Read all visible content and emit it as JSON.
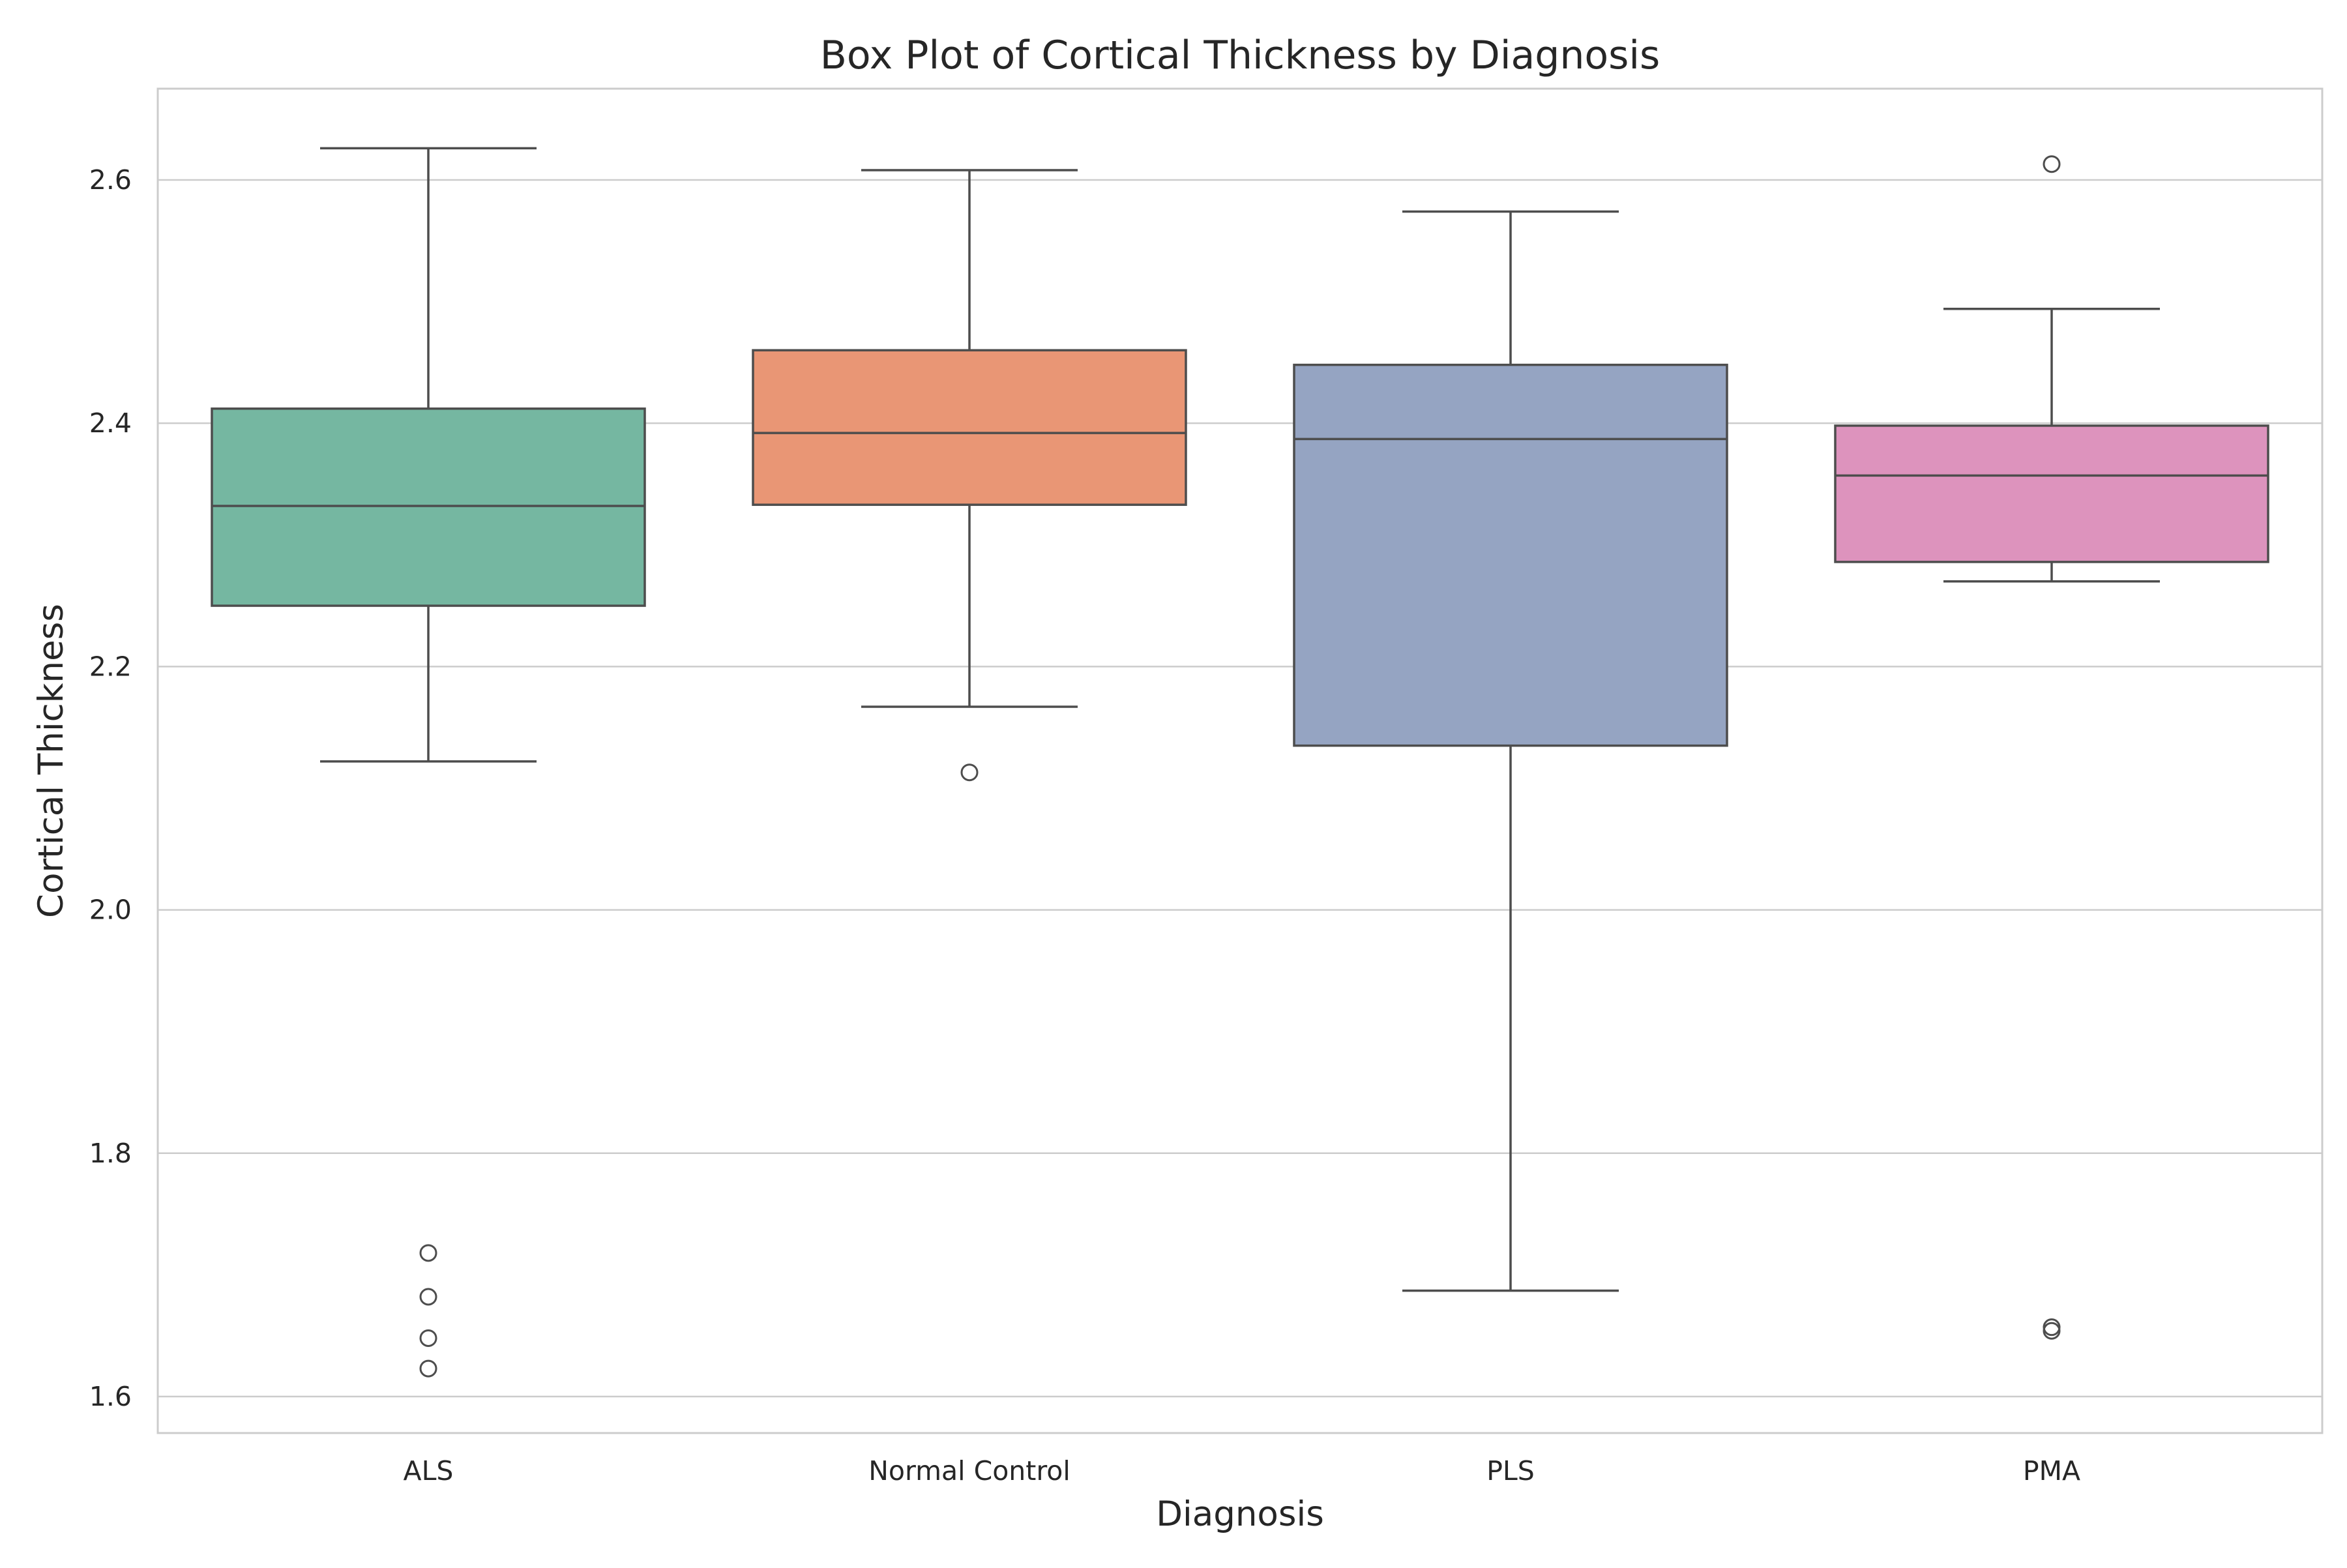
{
  "chart_data": {
    "type": "box",
    "title": "Box Plot of Cortical Thickness by Diagnosis",
    "xlabel": "Diagnosis",
    "ylabel": "Cortical Thickness",
    "ylim": [
      1.57,
      2.675
    ],
    "yticks": [
      1.6,
      1.8,
      2.0,
      2.2,
      2.4,
      2.6
    ],
    "ytick_labels": [
      "1.6",
      "1.8",
      "2.0",
      "2.2",
      "2.4",
      "2.6"
    ],
    "grid": true,
    "categories": [
      "ALS",
      "Normal Control",
      "PLS",
      "PMA"
    ],
    "boxes": [
      {
        "category": "ALS",
        "whisker_low": 2.122,
        "q1": 2.25,
        "median": 2.332,
        "q3": 2.412,
        "whisker_high": 2.626,
        "outliers": [
          1.718,
          1.682,
          1.648,
          1.623
        ],
        "color": "#75b7a1"
      },
      {
        "category": "Normal Control",
        "whisker_low": 2.167,
        "q1": 2.333,
        "median": 2.392,
        "q3": 2.46,
        "whisker_high": 2.608,
        "outliers": [
          2.113
        ],
        "color": "#e99675"
      },
      {
        "category": "PLS",
        "whisker_low": 1.687,
        "q1": 2.135,
        "median": 2.387,
        "q3": 2.448,
        "whisker_high": 2.574,
        "outliers": [],
        "color": "#95a4c2"
      },
      {
        "category": "PMA",
        "whisker_low": 2.27,
        "q1": 2.286,
        "median": 2.357,
        "q3": 2.398,
        "whisker_high": 2.494,
        "outliers": [
          2.613,
          1.657,
          1.654
        ],
        "color": "#dd93bd"
      }
    ]
  }
}
